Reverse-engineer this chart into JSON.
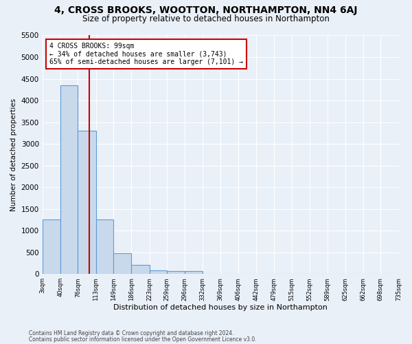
{
  "title1": "4, CROSS BROOKS, WOOTTON, NORTHAMPTON, NN4 6AJ",
  "title2": "Size of property relative to detached houses in Northampton",
  "xlabel": "Distribution of detached houses by size in Northampton",
  "ylabel": "Number of detached properties",
  "footer1": "Contains HM Land Registry data © Crown copyright and database right 2024.",
  "footer2": "Contains public sector information licensed under the Open Government Licence v3.0.",
  "bin_edges": [
    3,
    40,
    76,
    113,
    149,
    186,
    223,
    259,
    296,
    332,
    369,
    406,
    442,
    479,
    515,
    552,
    589,
    625,
    662,
    698,
    735
  ],
  "bar_values": [
    1250,
    4350,
    3300,
    1250,
    475,
    215,
    90,
    65,
    60,
    0,
    0,
    0,
    0,
    0,
    0,
    0,
    0,
    0,
    0,
    0
  ],
  "bar_color": "#c9d9ec",
  "bar_edge_color": "#5b9bd5",
  "property_size": 99,
  "vline_color": "#cc0000",
  "annotation_text": "4 CROSS BROOKS: 99sqm\n← 34% of detached houses are smaller (3,743)\n65% of semi-detached houses are larger (7,101) →",
  "annotation_box_color": "#ffffff",
  "annotation_border_color": "#cc0000",
  "ylim": [
    0,
    5500
  ],
  "yticks": [
    0,
    500,
    1000,
    1500,
    2000,
    2500,
    3000,
    3500,
    4000,
    4500,
    5000,
    5500
  ],
  "bg_color": "#eaf0f8",
  "grid_color": "#ffffff",
  "title1_fontsize": 10,
  "title2_fontsize": 8.5
}
